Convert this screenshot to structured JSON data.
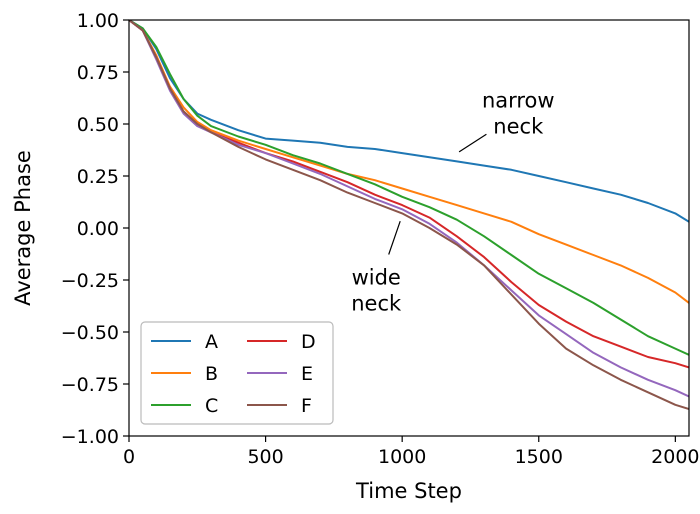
{
  "chart_data": {
    "type": "line",
    "title": "",
    "xlabel": "Time Step",
    "ylabel": "Average Phase",
    "xlim": [
      0,
      2050
    ],
    "ylim": [
      -1.0,
      1.0
    ],
    "xticks": [
      0,
      500,
      1000,
      1500,
      2000
    ],
    "yticks": [
      1.0,
      0.75,
      0.5,
      0.25,
      0.0,
      -0.25,
      -0.5,
      -0.75,
      -1.0
    ],
    "xtick_labels": [
      "0",
      "500",
      "1000",
      "1500",
      "2000"
    ],
    "ytick_labels": [
      "1.00",
      "0.75",
      "0.50",
      "0.25",
      "0.00",
      "−0.25",
      "−0.50",
      "−0.75",
      "−1.00"
    ],
    "grid": false,
    "legend_position": "bottom-left",
    "x": [
      0,
      50,
      100,
      150,
      200,
      250,
      300,
      400,
      500,
      600,
      700,
      800,
      900,
      1000,
      1100,
      1200,
      1300,
      1400,
      1500,
      1600,
      1700,
      1800,
      1900,
      2000,
      2050
    ],
    "series": [
      {
        "name": "A",
        "color": "#1f77b4",
        "values": [
          1.0,
          0.96,
          0.86,
          0.72,
          0.62,
          0.55,
          0.52,
          0.47,
          0.43,
          0.42,
          0.41,
          0.39,
          0.38,
          0.36,
          0.34,
          0.32,
          0.3,
          0.28,
          0.25,
          0.22,
          0.19,
          0.16,
          0.12,
          0.07,
          0.03
        ]
      },
      {
        "name": "B",
        "color": "#ff7f0e",
        "values": [
          1.0,
          0.95,
          0.83,
          0.68,
          0.58,
          0.51,
          0.47,
          0.42,
          0.38,
          0.34,
          0.3,
          0.26,
          0.23,
          0.19,
          0.15,
          0.11,
          0.07,
          0.03,
          -0.03,
          -0.08,
          -0.13,
          -0.18,
          -0.24,
          -0.31,
          -0.36
        ]
      },
      {
        "name": "C",
        "color": "#2ca02c",
        "values": [
          1.0,
          0.96,
          0.87,
          0.74,
          0.62,
          0.54,
          0.49,
          0.44,
          0.4,
          0.35,
          0.31,
          0.26,
          0.21,
          0.15,
          0.1,
          0.04,
          -0.04,
          -0.13,
          -0.22,
          -0.29,
          -0.36,
          -0.44,
          -0.52,
          -0.58,
          -0.61
        ]
      },
      {
        "name": "D",
        "color": "#d62728",
        "values": [
          1.0,
          0.95,
          0.82,
          0.67,
          0.56,
          0.5,
          0.46,
          0.41,
          0.36,
          0.32,
          0.27,
          0.22,
          0.16,
          0.11,
          0.05,
          -0.04,
          -0.14,
          -0.26,
          -0.37,
          -0.45,
          -0.52,
          -0.57,
          -0.62,
          -0.65,
          -0.67
        ]
      },
      {
        "name": "E",
        "color": "#9467bd",
        "values": [
          1.0,
          0.95,
          0.81,
          0.66,
          0.55,
          0.49,
          0.46,
          0.4,
          0.36,
          0.31,
          0.26,
          0.2,
          0.14,
          0.09,
          0.02,
          -0.07,
          -0.18,
          -0.3,
          -0.42,
          -0.51,
          -0.6,
          -0.67,
          -0.73,
          -0.78,
          -0.81
        ]
      },
      {
        "name": "F",
        "color": "#8c564b",
        "values": [
          1.0,
          0.95,
          0.82,
          0.67,
          0.56,
          0.5,
          0.46,
          0.39,
          0.33,
          0.28,
          0.23,
          0.17,
          0.12,
          0.07,
          0.0,
          -0.08,
          -0.18,
          -0.32,
          -0.46,
          -0.58,
          -0.66,
          -0.73,
          -0.79,
          -0.85,
          -0.87
        ]
      }
    ],
    "annotations": [
      {
        "text_lines": [
          "narrow",
          "neck"
        ],
        "points_to": {
          "x": 1190,
          "y": 0.35
        },
        "text_at": {
          "x": 1425,
          "y": 0.55
        }
      },
      {
        "text_lines": [
          "wide",
          "neck"
        ],
        "points_to": {
          "x": 1000,
          "y": 0.06
        },
        "text_at": {
          "x": 905,
          "y": -0.3
        }
      }
    ]
  }
}
